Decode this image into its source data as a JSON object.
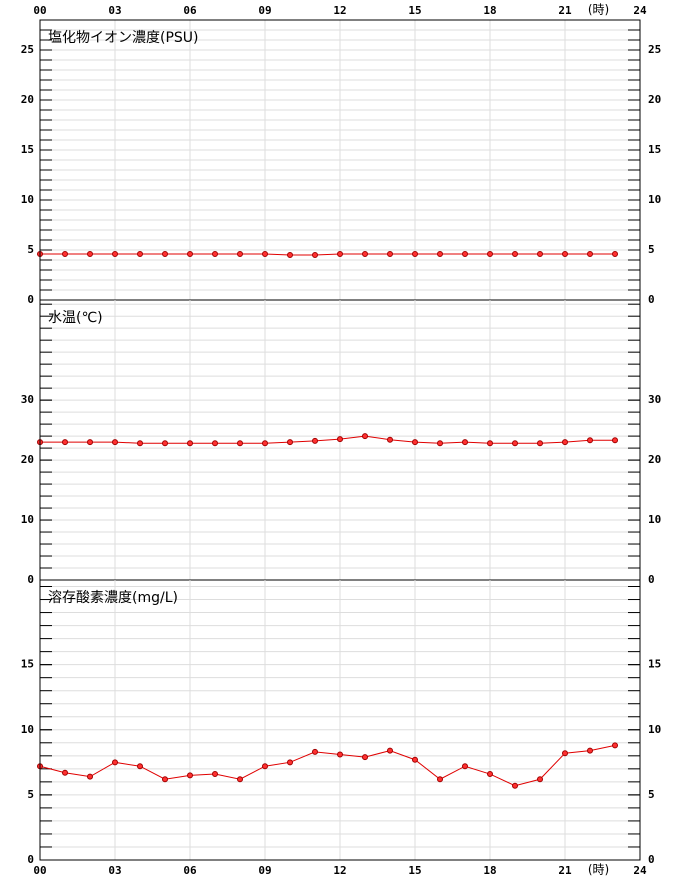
{
  "x_axis": {
    "xlim": [
      0,
      24
    ],
    "unit_label": "(時)",
    "xticks": [
      {
        "value": 0,
        "label": "00"
      },
      {
        "value": 3,
        "label": "03"
      },
      {
        "value": 6,
        "label": "06"
      },
      {
        "value": 9,
        "label": "09"
      },
      12,
      15,
      18,
      21,
      24
    ]
  },
  "chart_data": [
    {
      "type": "line",
      "title": "塩化物イオン濃度(PSU)",
      "color": "#e00000",
      "x": [
        0,
        1,
        2,
        3,
        4,
        5,
        6,
        7,
        8,
        9,
        10,
        11,
        12,
        13,
        14,
        15,
        16,
        17,
        18,
        19,
        20,
        21,
        22,
        23
      ],
      "values": [
        4.6,
        4.6,
        4.6,
        4.6,
        4.6,
        4.6,
        4.6,
        4.6,
        4.6,
        4.6,
        4.5,
        4.5,
        4.6,
        4.6,
        4.6,
        4.6,
        4.6,
        4.6,
        4.6,
        4.6,
        4.6,
        4.6,
        4.6,
        4.6
      ],
      "ylim": [
        0,
        28
      ],
      "yticks": [
        0,
        5,
        10,
        15,
        20,
        25
      ],
      "minor_step": 1
    },
    {
      "type": "line",
      "title": "水温(℃)",
      "color": "#e00000",
      "x": [
        0,
        1,
        2,
        3,
        4,
        5,
        6,
        7,
        8,
        9,
        10,
        11,
        12,
        13,
        14,
        15,
        16,
        17,
        18,
        19,
        20,
        21,
        22,
        23
      ],
      "values": [
        23.0,
        23.0,
        23.0,
        23.0,
        22.8,
        22.8,
        22.8,
        22.8,
        22.8,
        22.8,
        23.0,
        23.2,
        23.5,
        24.0,
        23.4,
        23.0,
        22.8,
        23.0,
        22.8,
        22.8,
        22.8,
        23.0,
        23.3,
        23.3
      ],
      "ylim": [
        0,
        46.7
      ],
      "yticks": [
        0,
        10,
        20,
        30
      ],
      "minor_step": 2
    },
    {
      "type": "line",
      "title": "溶存酸素濃度(mg/L)",
      "color": "#e00000",
      "x": [
        0,
        1,
        2,
        3,
        4,
        5,
        6,
        7,
        8,
        9,
        10,
        11,
        12,
        13,
        14,
        15,
        16,
        17,
        18,
        19,
        20,
        21,
        22,
        23
      ],
      "values": [
        7.2,
        6.7,
        6.4,
        7.5,
        7.2,
        6.2,
        6.5,
        6.6,
        6.2,
        7.2,
        7.5,
        8.3,
        8.1,
        7.9,
        8.4,
        7.7,
        6.2,
        7.2,
        6.6,
        5.7,
        6.2,
        8.2,
        8.4,
        8.8
      ],
      "ylim": [
        0,
        21.5
      ],
      "yticks": [
        0,
        5,
        10,
        15
      ],
      "minor_step": 1
    }
  ]
}
